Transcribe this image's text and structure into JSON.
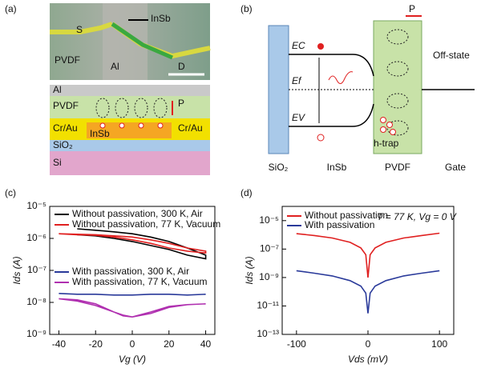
{
  "panels": {
    "a": {
      "label": "(a)",
      "photo": {
        "source": "S",
        "channel": "InSb",
        "polymer": "PVDF",
        "gate": "Al",
        "drain": "D"
      },
      "schematic": {
        "top": "Al",
        "polymer": "PVDF",
        "polarization": "P",
        "left_contact": "Cr/Au",
        "channel": "InSb",
        "right_contact": "Cr/Au",
        "oxide": "SiO₂",
        "substrate": "Si"
      }
    },
    "b": {
      "label": "(b)",
      "polarization": "P",
      "conduction": "EC",
      "fermi": "Ef",
      "valence": "EV",
      "state": "Off-state",
      "trap": "h-trap",
      "regions": [
        "SiO₂",
        "InSb",
        "PVDF",
        "Gate"
      ]
    }
  },
  "chart_data": [
    {
      "type": "line",
      "panel": "(c)",
      "xlabel": "Vg (V)",
      "ylabel": "Ids (A)",
      "log_y": true,
      "xlim": [
        -45,
        45
      ],
      "xticks": [
        -40,
        -20,
        0,
        20,
        40
      ],
      "ylim": [
        1e-09,
        1e-05
      ],
      "yticks": [
        {
          "value": 1e-09,
          "label": "10⁻⁹"
        },
        {
          "value": 1e-08,
          "label": "10⁻⁸"
        },
        {
          "value": 1e-07,
          "label": "10⁻⁷"
        },
        {
          "value": 1e-06,
          "label": "10⁻⁶"
        },
        {
          "value": 1e-05,
          "label": "10⁻⁵"
        }
      ],
      "series": [
        {
          "name": "Without passivation, 300 K, Air",
          "color": "#000000",
          "x": [
            -30,
            -20,
            -10,
            0,
            10,
            20,
            30,
            40,
            40,
            30,
            20,
            10,
            0,
            -10,
            -20,
            -30
          ],
          "values": [
            1.3e-06,
            1.2e-06,
            1e-06,
            8e-07,
            6e-07,
            4.5e-07,
            3e-07,
            2.3e-07,
            3e-07,
            5e-07,
            8e-07,
            1.1e-06,
            1.4e-06,
            1.6e-06,
            1.8e-06,
            2e-06
          ]
        },
        {
          "name": "Without passivation, 77 K, Vacuum",
          "color": "#e02020",
          "x": [
            -40,
            -30,
            -20,
            -10,
            0,
            10,
            20,
            30,
            40,
            40,
            30,
            20,
            10,
            0,
            -10,
            -20,
            -30,
            -40
          ],
          "values": [
            1.4e-06,
            1.3e-06,
            1.25e-06,
            1.1e-06,
            9e-07,
            7e-07,
            5e-07,
            4e-07,
            3.5e-07,
            4e-07,
            5e-07,
            7e-07,
            9e-07,
            1.1e-06,
            1.2e-06,
            1.3e-06,
            1.35e-06,
            1.4e-06
          ]
        },
        {
          "name": "With passivation, 300 K, Air",
          "color": "#2a3a9a",
          "x": [
            -40,
            -30,
            -20,
            -10,
            0,
            10,
            20,
            30,
            40
          ],
          "values": [
            1.9e-08,
            1.8e-08,
            1.8e-08,
            1.7e-08,
            1.7e-08,
            1.8e-08,
            1.8e-08,
            1.7e-08,
            1.8e-08
          ]
        },
        {
          "name": "With passivation, 77 K, Vacuum",
          "color": "#b030b0",
          "x": [
            -40,
            -30,
            -20,
            -10,
            -5,
            0,
            10,
            20,
            30,
            40,
            40,
            30,
            20,
            10,
            0,
            -5,
            -10,
            -20,
            -30,
            -40
          ],
          "values": [
            1.3e-08,
            1.1e-08,
            8e-09,
            5e-09,
            4e-09,
            3.5e-09,
            4.5e-09,
            7e-09,
            8.5e-09,
            9e-09,
            9e-09,
            8.5e-09,
            7.5e-09,
            5e-09,
            3.5e-09,
            3.8e-09,
            5e-09,
            9e-09,
            1.2e-08,
            1.3e-08
          ]
        }
      ]
    },
    {
      "type": "line",
      "panel": "(d)",
      "xlabel": "Vds (mV)",
      "ylabel": "Ids (A)",
      "log_y": true,
      "annotation": "T = 77 K, Vg = 0 V",
      "xlim": [
        -120,
        120
      ],
      "xticks": [
        -100,
        0,
        100
      ],
      "ylim": [
        1e-13,
        0.0001
      ],
      "yticks": [
        {
          "value": 1e-13,
          "label": "10⁻¹³"
        },
        {
          "value": 1e-11,
          "label": "10⁻¹¹"
        },
        {
          "value": 1e-09,
          "label": "10⁻⁹"
        },
        {
          "value": 1e-07,
          "label": "10⁻⁷"
        },
        {
          "value": 1e-05,
          "label": "10⁻⁵"
        }
      ],
      "series": [
        {
          "name": "Without passivation",
          "color": "#e02020",
          "x": [
            -100,
            -75,
            -50,
            -25,
            -10,
            -3,
            0,
            3,
            10,
            25,
            50,
            75,
            100
          ],
          "values": [
            1.2e-06,
            9e-07,
            6e-07,
            3e-07,
            1.2e-07,
            4e-08,
            1e-09,
            4e-08,
            1.2e-07,
            3e-07,
            6e-07,
            9e-07,
            1.3e-06
          ]
        },
        {
          "name": "With passivation",
          "color": "#2a3a9a",
          "x": [
            -100,
            -75,
            -50,
            -25,
            -10,
            -3,
            0,
            3,
            10,
            25,
            50,
            75,
            100
          ],
          "values": [
            3e-09,
            2e-09,
            1.3e-09,
            6e-10,
            2.5e-10,
            8e-11,
            3e-12,
            8e-11,
            2.5e-10,
            6e-10,
            1.3e-09,
            2e-09,
            3e-09
          ]
        }
      ]
    }
  ]
}
